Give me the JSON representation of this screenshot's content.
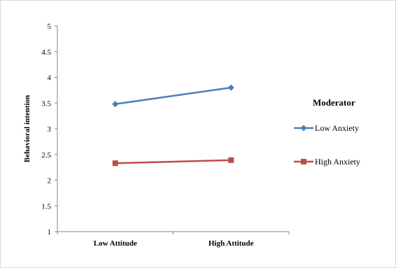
{
  "chart_data": {
    "type": "line",
    "title": "",
    "xlabel": "",
    "ylabel": "Behavioral intention",
    "categories": [
      "Low Attitude",
      "High Attitude"
    ],
    "ylim": [
      1,
      5
    ],
    "yticks": [
      "1",
      "1.5",
      "2",
      "2.5",
      "3",
      "3.5",
      "4",
      "4.5",
      "5"
    ],
    "grid": false,
    "legend_title": "Moderator",
    "legend_position": "right",
    "series": [
      {
        "name": "Low Anxiety",
        "values": [
          3.48,
          3.8
        ],
        "color": "#4a7ebb",
        "marker": "diamond"
      },
      {
        "name": "High Anxiety",
        "values": [
          2.33,
          2.39
        ],
        "color": "#be4b48",
        "marker": "square"
      }
    ]
  }
}
